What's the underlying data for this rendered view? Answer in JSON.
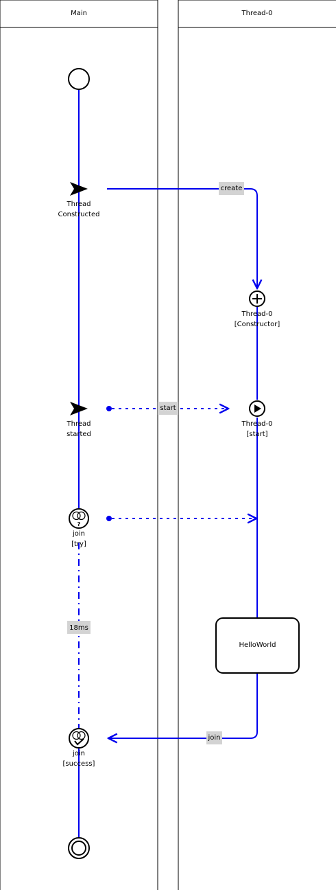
{
  "colors": {
    "flow": "#0000ee",
    "label_bg": "#d3d3d3",
    "stroke": "#000000"
  },
  "lanes": [
    {
      "title": "Main"
    },
    {
      "title": "Thread-0"
    }
  ],
  "nodes": {
    "thread_constructed": {
      "line1": "Thread",
      "line2": "Constructed",
      "icon": "send-icon"
    },
    "thread0_constructor": {
      "line1": "Thread-0",
      "line2": "[Constructor]",
      "icon": "plus-circle-icon"
    },
    "thread_started": {
      "line1": "Thread",
      "line2": "started",
      "icon": "send-icon"
    },
    "thread0_start": {
      "line1": "Thread-0",
      "line2": "[start]",
      "icon": "play-circle-icon"
    },
    "join_try": {
      "line1": "join",
      "line2": "[try]",
      "icon": "join-question-icon"
    },
    "join_success": {
      "line1": "join",
      "line2": "[success]",
      "icon": "join-check-icon"
    },
    "hello_world": {
      "label": "HelloWorld"
    }
  },
  "edges": {
    "create": {
      "label": "create"
    },
    "start": {
      "label": "start"
    },
    "duration": {
      "label": "18ms"
    },
    "join": {
      "label": "join"
    }
  }
}
